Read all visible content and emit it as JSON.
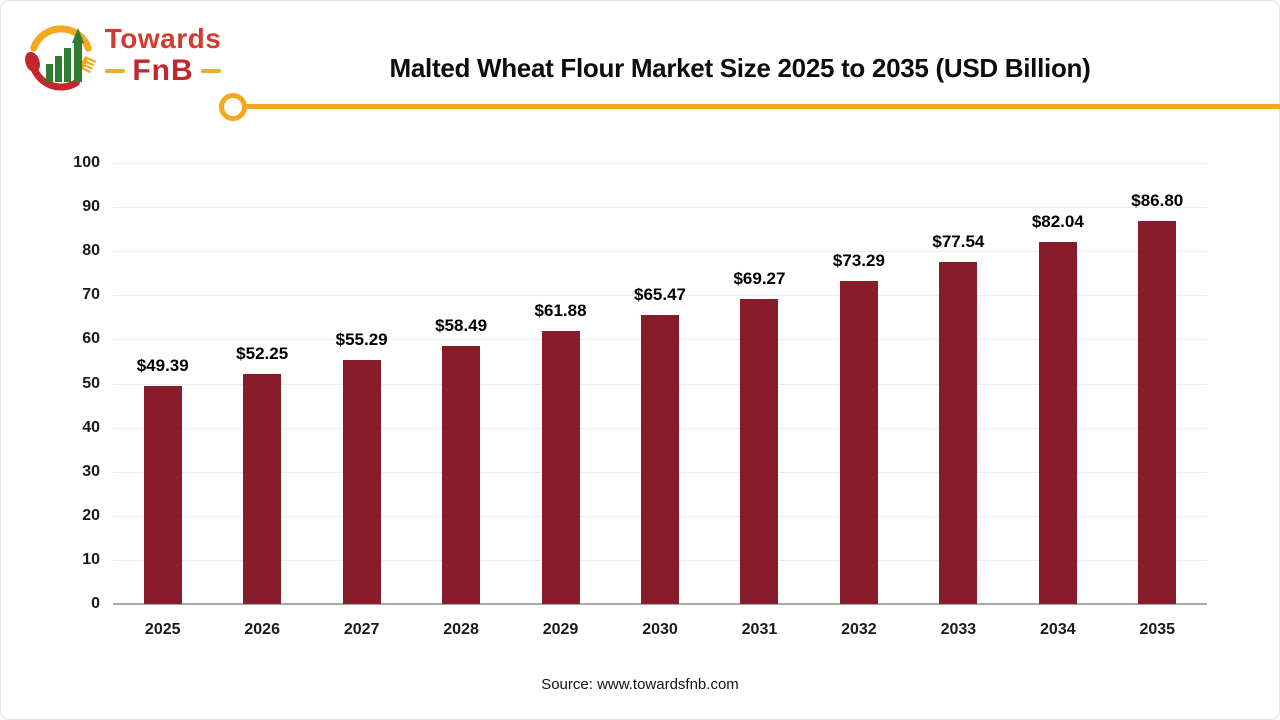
{
  "logo": {
    "brand_top": "Towards",
    "brand_bottom": "FnB"
  },
  "header": {
    "title": "Malted Wheat Flour Market Size 2025 to 2035 (USD Billion)"
  },
  "chart_data": {
    "type": "bar",
    "title": "Malted Wheat Flour Market Size 2025 to 2035 (USD Billion)",
    "categories": [
      "2025",
      "2026",
      "2027",
      "2028",
      "2029",
      "2030",
      "2031",
      "2032",
      "2033",
      "2034",
      "2035"
    ],
    "values": [
      49.39,
      52.25,
      55.29,
      58.49,
      61.88,
      65.47,
      69.27,
      73.29,
      77.54,
      82.04,
      86.8
    ],
    "data_labels": [
      "$49.39",
      "$52.25",
      "$55.29",
      "$58.49",
      "$61.88",
      "$65.47",
      "$69.27",
      "$73.29",
      "$77.54",
      "$82.04",
      "$86.80"
    ],
    "xlabel": "",
    "ylabel": "",
    "ylim": [
      0,
      100
    ],
    "ytick_step": 10,
    "yticks": [
      0,
      10,
      20,
      30,
      40,
      50,
      60,
      70,
      80,
      90,
      100
    ],
    "grid": "horizontal",
    "legend": "none",
    "bar_color": "#871c2b"
  },
  "colors": {
    "bar_maroon": "#871c2b",
    "accent_gold": "#f5a71f",
    "logo_red": "#d23b2f",
    "logo_dark_red": "#c4262c",
    "logo_green": "#2e7d32",
    "gridline_gray": "#ececec",
    "axis_gray": "#a9a9a9"
  },
  "footer": {
    "source": "Source: www.towardsfnb.com"
  }
}
